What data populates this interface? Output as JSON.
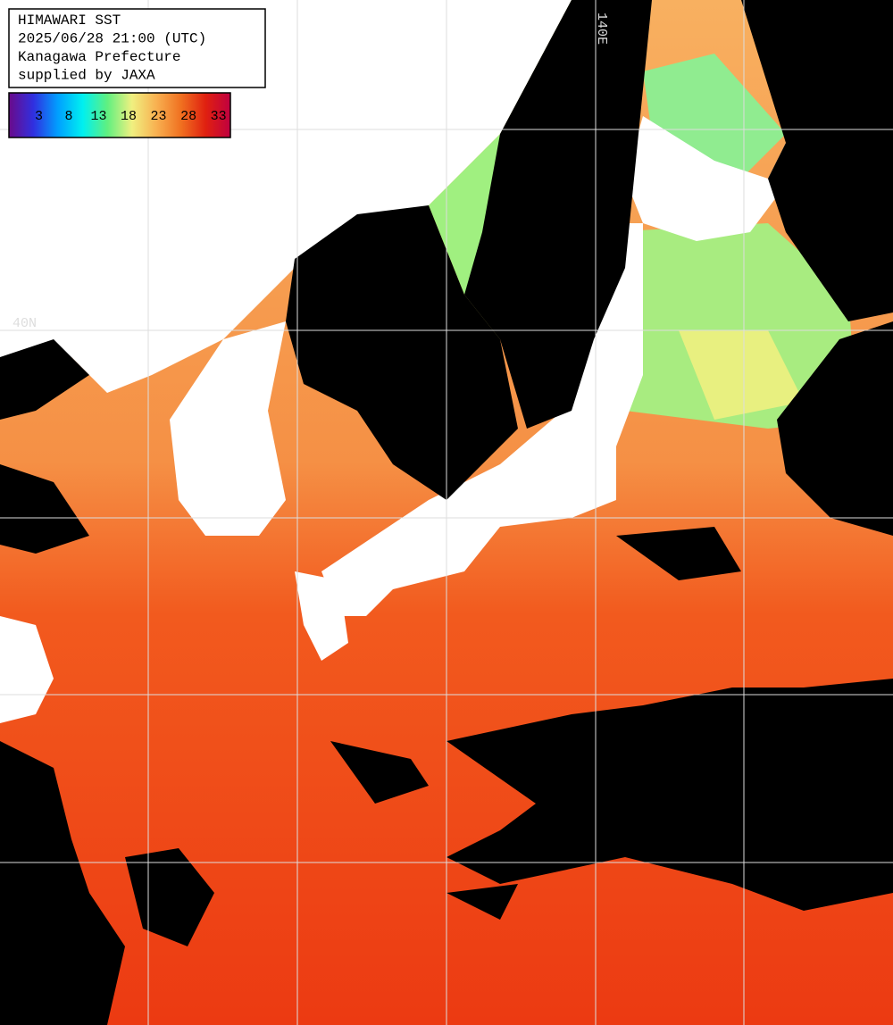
{
  "header": {
    "lines": [
      "HIMAWARI SST",
      "2025/06/28 21:00 (UTC)",
      "Kanagawa Prefecture",
      "supplied by JAXA"
    ]
  },
  "colorbar": {
    "range": [
      -2,
      35
    ],
    "ticks": [
      3,
      8,
      13,
      18,
      23,
      28,
      33
    ],
    "colors": [
      "#6a0a8a",
      "#3030e0",
      "#00a0ff",
      "#00f0f0",
      "#60f080",
      "#f0f080",
      "#f8b050",
      "#f07020",
      "#e02010",
      "#c00040"
    ]
  },
  "grid_labels": {
    "lat": "40N",
    "lon": "140E"
  }
}
